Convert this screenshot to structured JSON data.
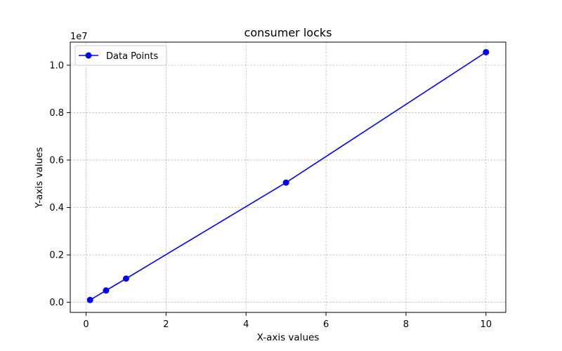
{
  "chart_data": {
    "type": "line",
    "title": "consumer locks",
    "xlabel": "X-axis values",
    "ylabel": "Y-axis values",
    "y_offset_label": "1e7",
    "y_multiplier": 10000000,
    "xlim": [
      -0.3955,
      10.4955
    ],
    "ylim": [
      -0.0425,
      1.0975
    ],
    "x_ticks": [
      0,
      2,
      4,
      6,
      8,
      10
    ],
    "x_tick_labels": [
      "0",
      "2",
      "4",
      "6",
      "8",
      "10"
    ],
    "y_ticks": [
      0.0,
      0.2,
      0.4,
      0.6,
      0.8,
      1.0
    ],
    "y_tick_labels": [
      "0.0",
      "0.2",
      "0.4",
      "0.6",
      "0.8",
      "1.0"
    ],
    "grid": true,
    "legend_position": "top-left",
    "series": [
      {
        "name": "Data Points",
        "color": "#0000ff",
        "marker": "circle",
        "x": [
          0.1,
          0.5,
          1,
          5,
          10
        ],
        "y": [
          0.01,
          0.05,
          0.1,
          0.505,
          1.055
        ]
      }
    ]
  }
}
